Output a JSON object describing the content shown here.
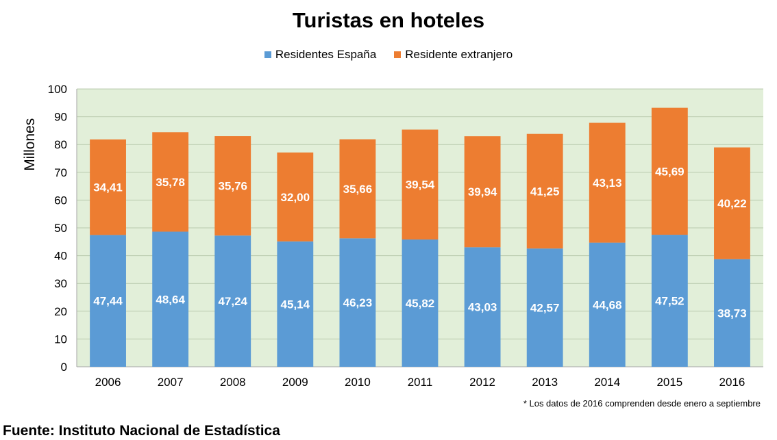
{
  "chart_data": {
    "type": "bar",
    "stacked": true,
    "title": "Turistas en hoteles",
    "ylabel": "Millones",
    "xlabel": "",
    "ylim": [
      0,
      100
    ],
    "yticks": [
      0,
      10,
      20,
      30,
      40,
      50,
      60,
      70,
      80,
      90,
      100
    ],
    "grid": true,
    "legend_position": "top",
    "categories": [
      "2006",
      "2007",
      "2008",
      "2009",
      "2010",
      "2011",
      "2012",
      "2013",
      "2014",
      "2015",
      "2016"
    ],
    "series": [
      {
        "name": "Residentes España",
        "color": "#5b9bd5",
        "values": [
          47.44,
          48.64,
          47.24,
          45.14,
          46.23,
          45.82,
          43.03,
          42.57,
          44.68,
          47.52,
          38.73
        ],
        "labels": [
          "47,44",
          "48,64",
          "47,24",
          "45,14",
          "46,23",
          "45,82",
          "43,03",
          "42,57",
          "44,68",
          "47,52",
          "38,73"
        ]
      },
      {
        "name": "Residente extranjero",
        "color": "#ed7d31",
        "values": [
          34.41,
          35.78,
          35.76,
          32.0,
          35.66,
          39.54,
          39.94,
          41.25,
          43.13,
          45.69,
          40.22
        ],
        "labels": [
          "34,41",
          "35,78",
          "35,76",
          "32,00",
          "35,66",
          "39,54",
          "39,94",
          "41,25",
          "43,13",
          "45,69",
          "40,22"
        ]
      }
    ],
    "plot_background": "#e2efd9",
    "gridline_color": "#b8c9ad"
  },
  "footnote": "* Los datos de 2016 comprenden desde enero a septiembre",
  "source": "Fuente: Instituto Nacional de Estadística"
}
